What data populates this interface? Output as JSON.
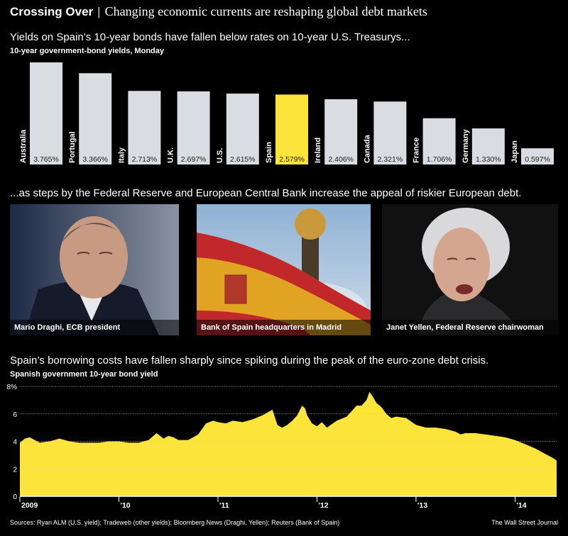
{
  "headline": {
    "title": "Crossing Over",
    "separator": "|",
    "subtitle": "Changing economic currents are reshaping global debt markets"
  },
  "section1": {
    "title": "Yields on Spain’s 10-year bonds have fallen below rates on 10-year U.S. Treasurys...",
    "subtitle": "10-year government-bond yields, Monday"
  },
  "section2": {
    "title": "...as steps by the Federal Reserve and European Central Bank increase the appeal of riskier European debt."
  },
  "photos": [
    {
      "caption": "Mario Draghi, ECB president"
    },
    {
      "caption": "Bank of Spain headquarters in Madrid"
    },
    {
      "caption": "Janet Yellen, Federal Reserve chairwoman"
    }
  ],
  "section3": {
    "title": "Spain’s borrowing costs have fallen sharply since spiking during the peak of the euro-zone debt crisis.",
    "subtitle": "Spanish government 10-year bond yield"
  },
  "footer": {
    "sources": "Sources: Ryan ALM (U.S. yield); Tradeweb (other yields); Bloomberg News (Draghi, Yellen); Reuters (Bank of Spain)",
    "credit": "The Wall Street Journal"
  },
  "colors": {
    "bar": "#d9dde2",
    "highlight": "#fde43b",
    "area": "#fde43b",
    "background": "#000000"
  },
  "chart_data": [
    {
      "type": "bar",
      "title": "10-year government-bond yields, Monday",
      "categories": [
        "Australia",
        "Portugal",
        "Italy",
        "U.K.",
        "U.S.",
        "Spain",
        "Ireland",
        "Canada",
        "France",
        "Germany",
        "Japan"
      ],
      "values": [
        3.765,
        3.366,
        2.713,
        2.697,
        2.615,
        2.579,
        2.406,
        2.321,
        1.706,
        1.33,
        0.597
      ],
      "labels": [
        "3.765%",
        "3.366%",
        "2.713%",
        "2.697%",
        "2.615%",
        "2.579%",
        "2.406%",
        "2.321%",
        "1.706%",
        "1.330%",
        "0.597%"
      ],
      "highlight": "Spain",
      "ylim": [
        0,
        3.765
      ]
    },
    {
      "type": "area",
      "title": "Spanish government 10-year bond yield",
      "xlabel": "",
      "ylabel": "",
      "ylim": [
        0,
        8
      ],
      "yticks": [
        0,
        2,
        4,
        6,
        8
      ],
      "ytick_labels": [
        "0",
        "2",
        "4",
        "6",
        "8%"
      ],
      "xticks": [
        2009,
        2010,
        2011,
        2012,
        2013,
        2014
      ],
      "xtick_labels": [
        "2009",
        "'10",
        "'11",
        "'12",
        "'13",
        "'14"
      ],
      "xlim": [
        2009.0,
        2014.42
      ],
      "grid": true,
      "x": [
        2009.0,
        2009.05,
        2009.1,
        2009.15,
        2009.2,
        2009.3,
        2009.4,
        2009.5,
        2009.6,
        2009.7,
        2009.8,
        2009.9,
        2010.0,
        2010.1,
        2010.2,
        2010.3,
        2010.38,
        2010.45,
        2010.5,
        2010.55,
        2010.6,
        2010.7,
        2010.8,
        2010.88,
        2010.95,
        2011.0,
        2011.08,
        2011.15,
        2011.25,
        2011.35,
        2011.45,
        2011.5,
        2011.55,
        2011.6,
        2011.62,
        2011.65,
        2011.7,
        2011.75,
        2011.8,
        2011.85,
        2011.88,
        2011.9,
        2011.95,
        2012.0,
        2012.05,
        2012.1,
        2012.2,
        2012.3,
        2012.35,
        2012.4,
        2012.45,
        2012.5,
        2012.53,
        2012.56,
        2012.6,
        2012.65,
        2012.7,
        2012.75,
        2012.8,
        2012.9,
        2013.0,
        2013.1,
        2013.2,
        2013.3,
        2013.4,
        2013.45,
        2013.5,
        2013.6,
        2013.7,
        2013.8,
        2013.9,
        2014.0,
        2014.1,
        2014.2,
        2014.3,
        2014.38,
        2014.42
      ],
      "y": [
        3.9,
        4.2,
        4.3,
        4.1,
        3.9,
        4.0,
        4.2,
        4.0,
        3.9,
        3.9,
        3.9,
        4.0,
        4.0,
        3.9,
        3.9,
        4.1,
        4.6,
        4.2,
        4.4,
        4.3,
        4.1,
        4.1,
        4.5,
        5.3,
        5.5,
        5.4,
        5.3,
        5.5,
        5.4,
        5.6,
        5.9,
        6.1,
        6.3,
        5.2,
        5.1,
        5.0,
        5.2,
        5.5,
        5.9,
        6.6,
        6.4,
        5.9,
        5.3,
        5.1,
        5.4,
        5.0,
        5.5,
        5.8,
        6.2,
        6.6,
        6.6,
        7.0,
        7.6,
        7.3,
        6.8,
        6.5,
        6.0,
        5.7,
        5.8,
        5.7,
        5.2,
        5.0,
        5.0,
        4.9,
        4.7,
        4.5,
        4.6,
        4.6,
        4.5,
        4.4,
        4.3,
        4.1,
        3.8,
        3.5,
        3.1,
        2.8,
        2.6
      ]
    }
  ]
}
